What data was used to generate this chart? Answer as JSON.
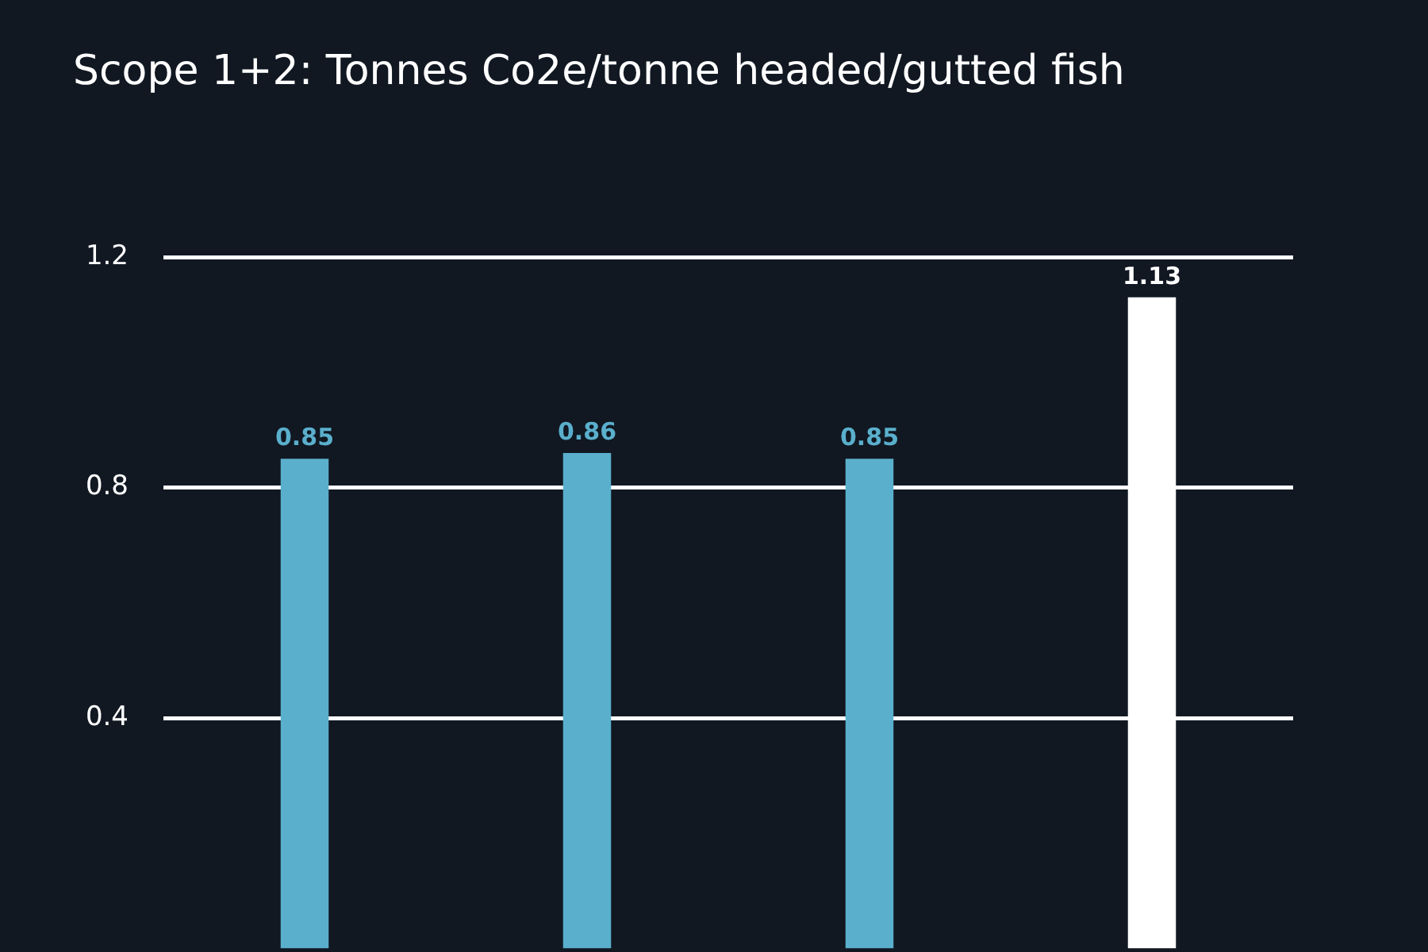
{
  "chart_data": {
    "type": "bar",
    "title": "Scope 1+2: Tonnes Co2e/tonne headed/gutted fish",
    "categories": [
      null,
      null,
      null,
      null
    ],
    "values": [
      0.85,
      0.86,
      0.85,
      1.13
    ],
    "colors": [
      "#5aafcc",
      "#5aafcc",
      "#5aafcc",
      "#ffffff"
    ],
    "ylim": [
      0,
      1.2
    ],
    "yticks": [
      0.4,
      0.8,
      1.2
    ],
    "grid": "y",
    "data_labels": true,
    "legend": false
  }
}
